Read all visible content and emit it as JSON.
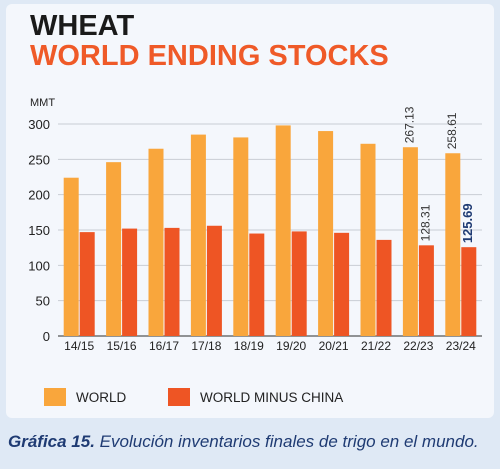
{
  "chart_data": {
    "type": "bar",
    "title": "WHEAT",
    "subtitle": "WORLD ENDING STOCKS",
    "ylabel": "MMT",
    "xlabel": "",
    "ylim": [
      0,
      300
    ],
    "yticks": [
      0,
      50,
      100,
      150,
      200,
      250,
      300
    ],
    "grid": true,
    "legend_position": "bottom",
    "categories": [
      "14/15",
      "15/16",
      "16/17",
      "17/18",
      "18/19",
      "19/20",
      "20/21",
      "21/22",
      "22/23",
      "23/24"
    ],
    "series": [
      {
        "name": "WORLD",
        "color": "#f9a63c",
        "values": [
          224,
          246,
          265,
          285,
          281,
          298,
          290,
          272,
          267.13,
          258.61
        ],
        "data_labels": [
          "",
          "",
          "",
          "",
          "",
          "",
          "",
          "",
          "267.13",
          "258.61"
        ]
      },
      {
        "name": "WORLD MINUS CHINA",
        "color": "#ee5524",
        "values": [
          147,
          152,
          153,
          156,
          145,
          148,
          146,
          136,
          128.31,
          125.69
        ],
        "data_labels": [
          "",
          "",
          "",
          "",
          "",
          "",
          "",
          "",
          "128.31",
          "125.69"
        ]
      }
    ]
  },
  "caption": {
    "label": "Gráfica 15.",
    "text": " Evolución inventarios finales de trigo en el mundo."
  }
}
